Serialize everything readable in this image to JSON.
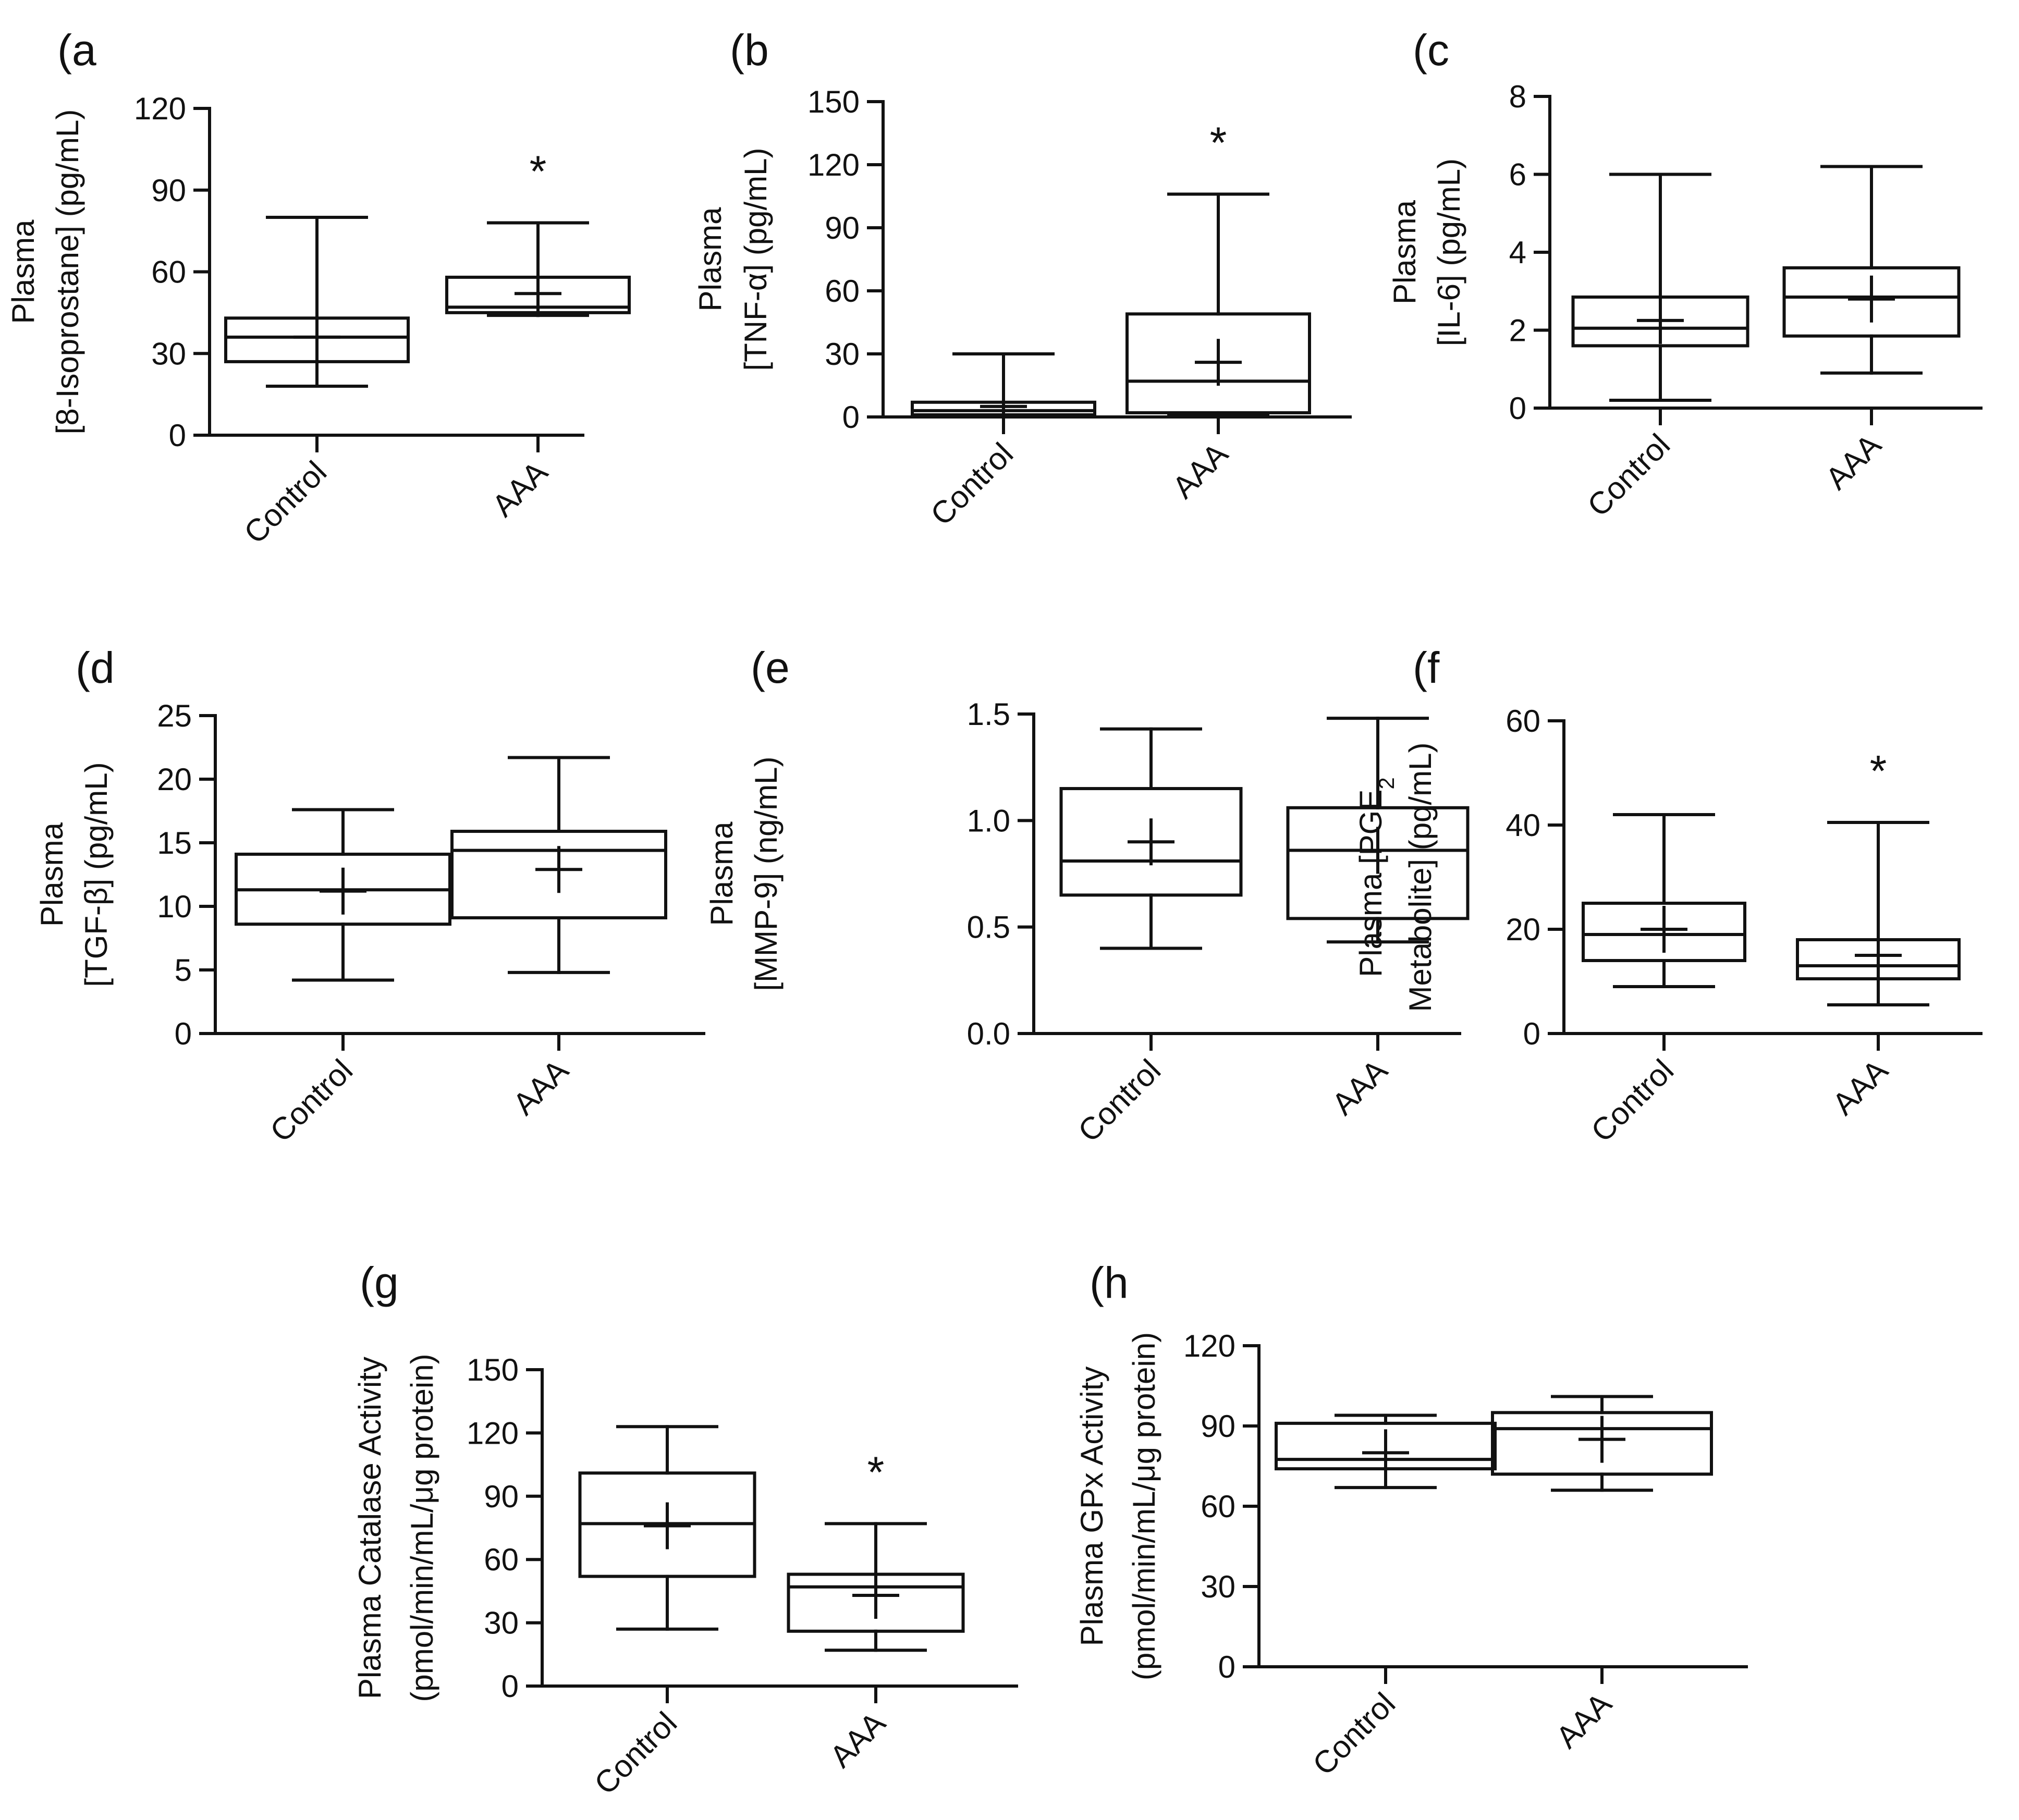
{
  "figure": {
    "colors": {
      "ink": "#111111",
      "background": "#ffffff"
    }
  },
  "chart_data": [
    {
      "id": "a",
      "panel_label": "(a",
      "type": "box",
      "ylabel_lines": [
        "Plasma",
        "[8-Isoprostane] (pg/mL)"
      ],
      "ylim": [
        0,
        120
      ],
      "yticks": [
        0,
        30,
        60,
        90,
        120
      ],
      "ytick_labels": [
        "0",
        "30",
        "60",
        "90",
        "120"
      ],
      "categories": [
        "Control",
        "AAA"
      ],
      "boxes": [
        {
          "name": "Control",
          "min": 18,
          "q1": 27,
          "median": 36,
          "q3": 43,
          "max": 80,
          "mean": 36,
          "significance": ""
        },
        {
          "name": "AAA",
          "min": 44,
          "q1": 45,
          "median": 47,
          "q3": 58,
          "max": 78,
          "mean": 52,
          "significance": "*"
        }
      ]
    },
    {
      "id": "b",
      "panel_label": "(b",
      "type": "box",
      "ylabel_lines": [
        "Plasma",
        "[TNF-α] (pg/mL)"
      ],
      "ylim": [
        0,
        150
      ],
      "yticks": [
        0,
        30,
        60,
        90,
        120,
        150
      ],
      "ytick_labels": [
        "0",
        "30",
        "60",
        "90",
        "120",
        "150"
      ],
      "categories": [
        "Control",
        "AAA"
      ],
      "boxes": [
        {
          "name": "Control",
          "min": 0,
          "q1": 1,
          "median": 3,
          "q3": 7,
          "max": 30,
          "mean": 5,
          "significance": ""
        },
        {
          "name": "AAA",
          "min": 1,
          "q1": 2,
          "median": 17,
          "q3": 49,
          "max": 106,
          "mean": 26,
          "significance": "*"
        }
      ]
    },
    {
      "id": "c",
      "panel_label": "(c",
      "type": "box",
      "ylabel_lines": [
        "Plasma",
        "[IL-6] (pg/mL)"
      ],
      "ylim": [
        0,
        8
      ],
      "yticks": [
        0,
        2,
        4,
        6,
        8
      ],
      "ytick_labels": [
        "0",
        "2",
        "4",
        "6",
        "8"
      ],
      "categories": [
        "Control",
        "AAA"
      ],
      "boxes": [
        {
          "name": "Control",
          "min": 0.2,
          "q1": 1.6,
          "median": 2.05,
          "q3": 2.85,
          "max": 6.0,
          "mean": 2.25,
          "significance": ""
        },
        {
          "name": "AAA",
          "min": 0.9,
          "q1": 1.85,
          "median": 2.85,
          "q3": 3.6,
          "max": 6.2,
          "mean": 2.8,
          "significance": ""
        }
      ]
    },
    {
      "id": "d",
      "panel_label": "(d",
      "type": "box",
      "ylabel_lines": [
        "Plasma",
        "[TGF-β] (pg/mL)"
      ],
      "ylim": [
        0,
        25
      ],
      "yticks": [
        0,
        5,
        10,
        15,
        20,
        25
      ],
      "ytick_labels": [
        "0",
        "5",
        "10",
        "15",
        "20",
        "25"
      ],
      "categories": [
        "Control",
        "AAA"
      ],
      "boxes": [
        {
          "name": "Control",
          "min": 4.2,
          "q1": 8.6,
          "median": 11.3,
          "q3": 14.1,
          "max": 17.6,
          "mean": 11.2,
          "significance": ""
        },
        {
          "name": "AAA",
          "min": 4.8,
          "q1": 9.1,
          "median": 14.4,
          "q3": 15.9,
          "max": 21.7,
          "mean": 12.9,
          "significance": ""
        }
      ]
    },
    {
      "id": "e",
      "panel_label": "(e",
      "type": "box",
      "ylabel_lines": [
        "Plasma",
        "[MMP-9] (ng/mL)"
      ],
      "ylim": [
        0,
        1.5
      ],
      "yticks": [
        0,
        0.5,
        1.0,
        1.5
      ],
      "ytick_labels": [
        "0.0",
        "0.5",
        "1.0",
        "1.5"
      ],
      "categories": [
        "Control",
        "AAA"
      ],
      "boxes": [
        {
          "name": "Control",
          "min": 0.4,
          "q1": 0.65,
          "median": 0.81,
          "q3": 1.15,
          "max": 1.43,
          "mean": 0.9,
          "significance": ""
        },
        {
          "name": "AAA",
          "min": 0.43,
          "q1": 0.54,
          "median": 0.86,
          "q3": 1.06,
          "max": 1.48,
          "mean": 0.86,
          "significance": ""
        }
      ]
    },
    {
      "id": "f",
      "panel_label": "(f",
      "type": "box",
      "ylabel_lines": [
        "Plasma [PGE",
        "Metabolite] (pg/mL)"
      ],
      "ylabel_subscript": "2",
      "ylim": [
        0,
        60
      ],
      "yticks": [
        0,
        20,
        40,
        60
      ],
      "ytick_labels": [
        "0",
        "20",
        "40",
        "60"
      ],
      "categories": [
        "Control",
        "AAA"
      ],
      "boxes": [
        {
          "name": "Control",
          "min": 9,
          "q1": 14,
          "median": 19,
          "q3": 25,
          "max": 42,
          "mean": 20,
          "significance": ""
        },
        {
          "name": "AAA",
          "min": 5.5,
          "q1": 10.5,
          "median": 13,
          "q3": 18,
          "max": 40.5,
          "mean": 15,
          "significance": "*"
        }
      ]
    },
    {
      "id": "g",
      "panel_label": "(g",
      "type": "box",
      "ylabel_lines": [
        "Plasma Catalase Activity",
        "(pmol/min/mL/μg protein)"
      ],
      "ylim": [
        0,
        150
      ],
      "yticks": [
        0,
        30,
        60,
        90,
        120,
        150
      ],
      "ytick_labels": [
        "0",
        "30",
        "60",
        "90",
        "120",
        "150"
      ],
      "categories": [
        "Control",
        "AAA"
      ],
      "boxes": [
        {
          "name": "Control",
          "min": 27,
          "q1": 52,
          "median": 77,
          "q3": 101,
          "max": 123,
          "mean": 76,
          "significance": ""
        },
        {
          "name": "AAA",
          "min": 17,
          "q1": 26,
          "median": 47,
          "q3": 53,
          "max": 77,
          "mean": 43,
          "significance": "*"
        }
      ]
    },
    {
      "id": "h",
      "panel_label": "(h",
      "type": "box",
      "ylabel_lines": [
        "Plasma GPx Activity",
        "(pmol/min/mL/μg protein)"
      ],
      "ylim": [
        0,
        120
      ],
      "yticks": [
        0,
        30,
        60,
        90,
        120
      ],
      "ytick_labels": [
        "0",
        "30",
        "60",
        "90",
        "120"
      ],
      "categories": [
        "Control",
        "AAA"
      ],
      "boxes": [
        {
          "name": "Control",
          "min": 67,
          "q1": 74,
          "median": 77.5,
          "q3": 91,
          "max": 94,
          "mean": 80,
          "significance": ""
        },
        {
          "name": "AAA",
          "min": 66,
          "q1": 72,
          "median": 89,
          "q3": 95,
          "max": 101,
          "mean": 85,
          "significance": ""
        }
      ]
    }
  ]
}
